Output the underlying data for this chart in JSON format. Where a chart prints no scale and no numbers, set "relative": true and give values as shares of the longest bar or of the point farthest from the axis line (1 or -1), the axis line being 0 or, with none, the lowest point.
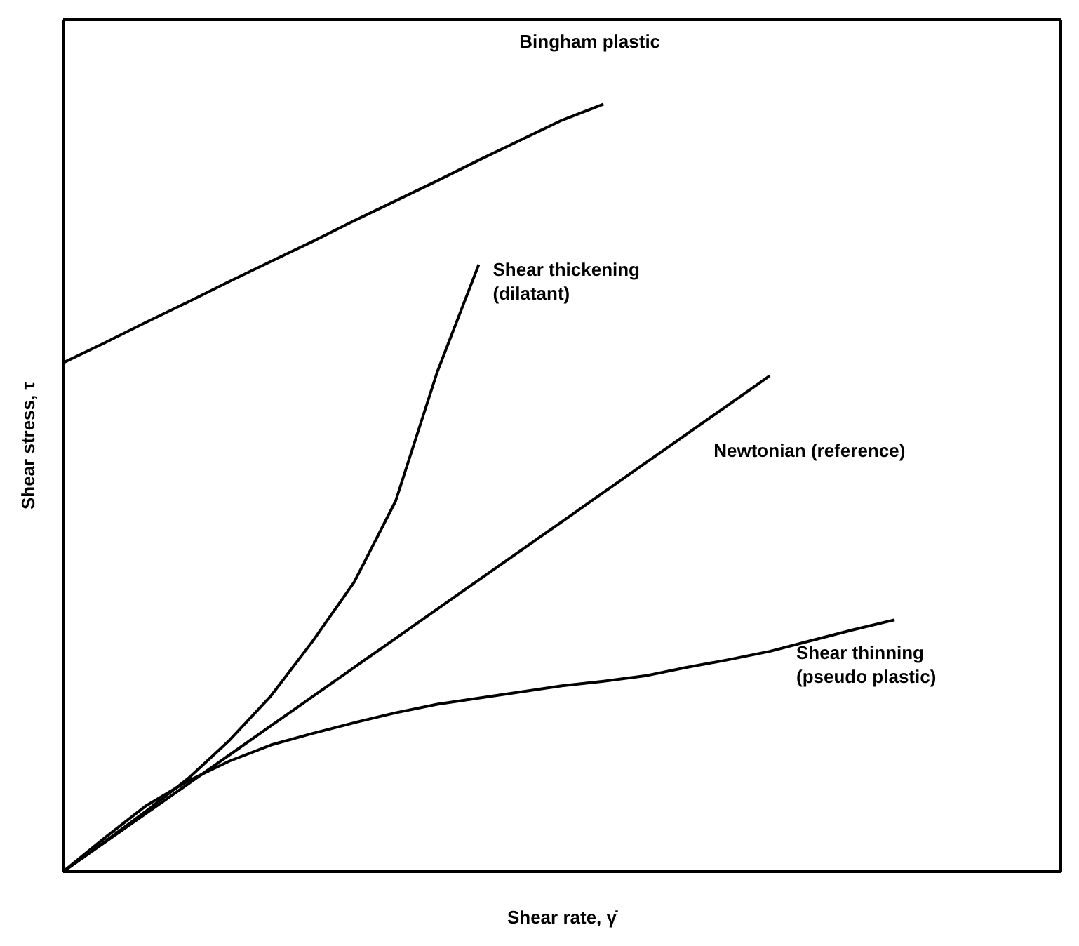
{
  "chart_data": {
    "type": "line",
    "relative": true,
    "xlabel": "Shear rate, γ̇",
    "ylabel": "Shear stress, τ",
    "marker": "none",
    "line_style": "solid",
    "categories": [
      null,
      null,
      null,
      null,
      null,
      null,
      null,
      null,
      null,
      null,
      null,
      null,
      null,
      null,
      null,
      null,
      null,
      null,
      null,
      null,
      null,
      null,
      null,
      null,
      null
    ],
    "series": [
      {
        "color": "#000000",
        "values": [
          0.663,
          0.689,
          0.716,
          0.742,
          0.769,
          0.795,
          0.821,
          0.848,
          0.874,
          0.9,
          0.927,
          0.953,
          0.979,
          1.0,
          null,
          null,
          null,
          null,
          null,
          null,
          null,
          null,
          null,
          null,
          null
        ]
      },
      {
        "color": "#000000",
        "values": [
          0,
          0.039,
          0.079,
          0.121,
          0.171,
          0.229,
          0.3,
          0.377,
          0.483,
          0.651,
          0.791,
          null,
          null,
          null,
          null,
          null,
          null,
          null,
          null,
          null,
          null,
          null,
          null,
          null,
          null
        ]
      },
      {
        "color": "#000000",
        "values": [
          0,
          0.038,
          0.076,
          0.114,
          0.152,
          0.19,
          0.228,
          0.266,
          0.304,
          0.342,
          0.38,
          0.418,
          0.456,
          0.494,
          0.532,
          0.57,
          0.608,
          0.646,
          null,
          null,
          null,
          null,
          null,
          null,
          null
        ]
      },
      {
        "color": "#000000",
        "values": [
          0,
          0.044,
          0.086,
          0.118,
          0.144,
          0.165,
          0.18,
          0.194,
          0.207,
          0.218,
          0.226,
          0.234,
          0.242,
          0.248,
          0.255,
          0.266,
          0.276,
          0.287,
          0.301,
          0.315,
          0.328,
          null,
          null,
          null,
          null
        ]
      }
    ],
    "annotations": [
      "Bingham plastic",
      "Shear thickening\n(dilatant)",
      "Newtonian (reference)",
      "Shear thinning\n(pseudo plastic)"
    ]
  }
}
